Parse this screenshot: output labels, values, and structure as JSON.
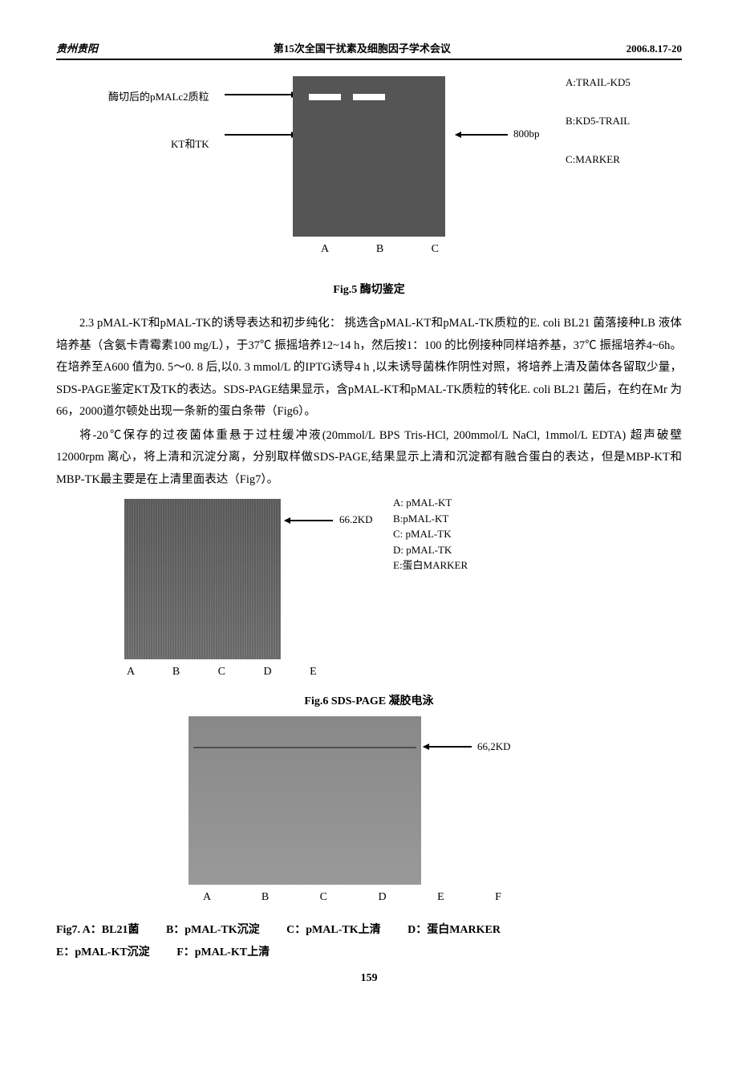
{
  "header": {
    "left": "贵州贵阳",
    "center": "第15次全国干扰素及细胞因子学术会议",
    "right": "2006.8.17-20"
  },
  "fig5": {
    "left_labels": {
      "l1": "酶切后的pMALc2质粒",
      "l2": "KT和TK"
    },
    "right_marker": "800bp",
    "right_labels": {
      "a": "A:TRAIL-KD5",
      "b": "B:KD5-TRAIL",
      "c": "C:MARKER"
    },
    "lanes": "A   B   C",
    "caption": "Fig.5   酶切鉴定"
  },
  "para1": "2.3 pMAL-KT和pMAL-TK的诱导表达和初步纯化：   挑选含pMAL-KT和pMAL-TK质粒的E. coli BL21 菌落接种LB 液体培养基（含氨卡青霉素100 mg/L），于37℃ 振摇培养12~14 h，然后按1：100 的比例接种同样培养基，37℃ 振摇培养4~6h。在培养至A600 值为0. 5～0. 8 后,以0. 3 mmol/L 的IPTG诱导4 h ,以未诱导菌株作阴性对照，将培养上清及菌体各留取少量，SDS-PAGE鉴定KT及TK的表达。SDS-PAGE结果显示，含pMAL-KT和pMAL-TK质粒的转化E. coli BL21 菌后，在约在Mr 为66，2000道尔顿处出现一条新的蛋白条带（Fig6）。",
  "para2": "将-20℃保存的过夜菌体重悬于过柱缓冲液(20mmol/L BPS Tris-HCl, 200mmol/L NaCl, 1mmol/L EDTA) 超声破壁12000rpm 离心，将上清和沉淀分离，分别取样做SDS-PAGE,结果显示上清和沉淀都有融合蛋白的表达，但是MBP-KT和MBP-TK最主要是在上清里面表达（Fig7）。",
  "fig6": {
    "label_66kd": "66.2KD",
    "legend": {
      "a": "A: pMAL-KT",
      "b": "B:pMAL-KT",
      "c": "C: pMAL-TK",
      "d": "D: pMAL-TK",
      "e": "E:蛋白MARKER"
    },
    "lanes": "A  B  C  D  E",
    "caption": "Fig.6   SDS-PAGE 凝胶电泳"
  },
  "fig7": {
    "label_66kd": "66,2KD",
    "lanes": "A  B  C   D  E  F",
    "caption_row1": {
      "a": "Fig7. A：BL21菌",
      "b": "B：pMAL-TK沉淀",
      "c": "C：pMAL-TK上清",
      "d": "D：蛋白MARKER"
    },
    "caption_row2": {
      "e": "E：pMAL-KT沉淀",
      "f": "F：pMAL-KT上清"
    }
  },
  "page_number": "159",
  "colors": {
    "text": "#000000",
    "background": "#ffffff",
    "gel_dark": "#555555",
    "gel_light": "#999999",
    "band": "#ffffff"
  }
}
